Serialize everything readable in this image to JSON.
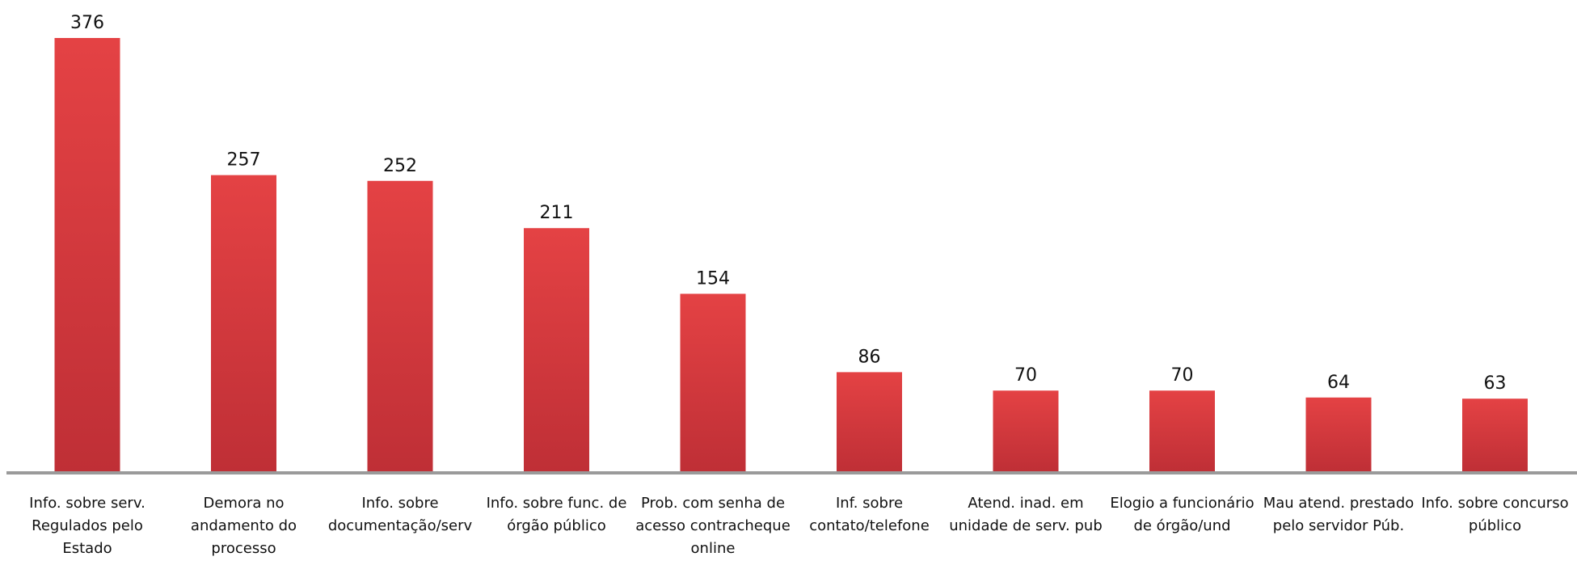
{
  "chart_data": {
    "type": "bar",
    "categories": [
      "Info.  sobre serv. Regulados pelo Estado",
      "Demora no andamento do processo",
      "Info. sobre documentação/serv",
      "Info. sobre func. de órgão público",
      "Prob. com senha de acesso contracheque online",
      "Inf. sobre contato/telefone",
      "Atend. inad. em unidade de serv. pub",
      "Elogio a funcionário de órgão/und",
      "Mau atend. prestado pelo servidor Púb.",
      "Info. sobre concurso público"
    ],
    "values": [
      376,
      257,
      252,
      211,
      154,
      86,
      70,
      70,
      64,
      63
    ],
    "color": "#d93a3e"
  }
}
